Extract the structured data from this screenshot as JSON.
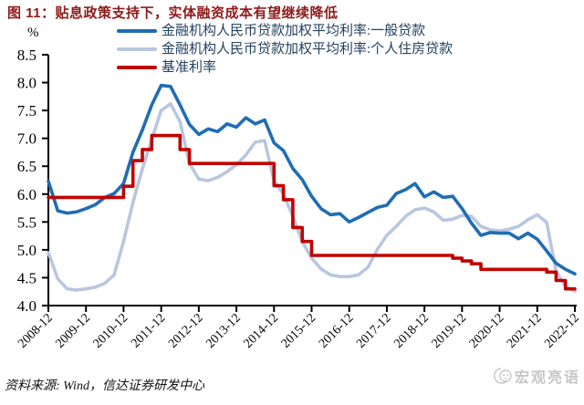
{
  "figure": {
    "title": "图 11：贴息政策支持下，实体融资成本有望继续降低",
    "y_unit_label": "%",
    "source_note": "资料来源: Wind，信达证券研发中心",
    "watermark": "宏观亮语"
  },
  "colors": {
    "title_text": "#8E1B1B",
    "legend_text": "#24425F",
    "axis": "#000000",
    "general_loan_line": "#1E6DB5",
    "housing_loan_line": "#B9C6DF",
    "benchmark_line": "#C00000",
    "watermark": "#C6C6C6"
  },
  "chart_data": {
    "type": "line",
    "title": "贴息政策支持下，实体融资成本有望继续降低",
    "ylabel": "%",
    "ylim": [
      4.0,
      8.5
    ],
    "y_tick_step": 0.5,
    "y_ticks": [
      "4.0",
      "4.5",
      "5.0",
      "5.5",
      "6.0",
      "6.5",
      "7.0",
      "7.5",
      "8.0",
      "8.5"
    ],
    "grid": false,
    "legend_position": "top",
    "x_frequency": "quarterly",
    "x_range": [
      "2008-12",
      "2022-12"
    ],
    "x_labels": [
      "2008-12",
      "2009-12",
      "2010-12",
      "2011-12",
      "2012-12",
      "2013-12",
      "2014-12",
      "2015-12",
      "2016-12",
      "2017-12",
      "2018-12",
      "2019-12",
      "2020-12",
      "2021-12",
      "2022-12"
    ],
    "series": [
      {
        "name": "金融机构人民币贷款加权平均利率:一般贷款",
        "color": "#1E6DB5",
        "style": "line",
        "values": [
          6.23,
          5.7,
          5.66,
          5.68,
          5.74,
          5.81,
          5.94,
          6.01,
          6.19,
          6.75,
          7.15,
          7.6,
          7.95,
          7.93,
          7.6,
          7.25,
          7.07,
          7.17,
          7.12,
          7.26,
          7.2,
          7.37,
          7.26,
          7.33,
          6.92,
          6.78,
          6.46,
          6.26,
          5.96,
          5.74,
          5.63,
          5.65,
          5.5,
          5.58,
          5.67,
          5.76,
          5.8,
          6.01,
          6.08,
          6.19,
          5.95,
          6.04,
          5.94,
          5.96,
          5.74,
          5.48,
          5.26,
          5.31,
          5.3,
          5.3,
          5.2,
          5.3,
          5.19,
          4.98,
          4.76,
          4.65,
          4.57
        ]
      },
      {
        "name": "金融机构人民币贷款加权平均利率:个人住房贷款",
        "color": "#B9C6DF",
        "style": "line",
        "values": [
          4.95,
          4.48,
          4.3,
          4.28,
          4.3,
          4.33,
          4.4,
          4.55,
          5.15,
          5.85,
          6.45,
          6.98,
          7.5,
          7.62,
          7.3,
          6.55,
          6.27,
          6.24,
          6.3,
          6.4,
          6.53,
          6.7,
          6.93,
          6.96,
          6.24,
          6.0,
          5.6,
          5.15,
          4.85,
          4.66,
          4.55,
          4.52,
          4.52,
          4.55,
          4.69,
          5.01,
          5.26,
          5.42,
          5.6,
          5.72,
          5.75,
          5.68,
          5.53,
          5.55,
          5.62,
          5.6,
          5.42,
          5.36,
          5.34,
          5.37,
          5.42,
          5.54,
          5.63,
          5.49,
          4.62,
          4.34,
          4.26
        ]
      },
      {
        "name": "基准利率",
        "color": "#C00000",
        "style": "step",
        "values": [
          5.94,
          5.94,
          5.94,
          5.94,
          5.94,
          5.94,
          5.94,
          5.94,
          6.14,
          6.6,
          6.8,
          7.05,
          7.05,
          7.05,
          6.8,
          6.55,
          6.55,
          6.55,
          6.55,
          6.55,
          6.55,
          6.55,
          6.55,
          6.55,
          6.15,
          5.9,
          5.4,
          5.15,
          4.9,
          4.9,
          4.9,
          4.9,
          4.9,
          4.9,
          4.9,
          4.9,
          4.9,
          4.9,
          4.9,
          4.9,
          4.9,
          4.9,
          4.9,
          4.85,
          4.8,
          4.75,
          4.65,
          4.65,
          4.65,
          4.65,
          4.65,
          4.65,
          4.65,
          4.6,
          4.45,
          4.3,
          4.3
        ]
      }
    ]
  }
}
